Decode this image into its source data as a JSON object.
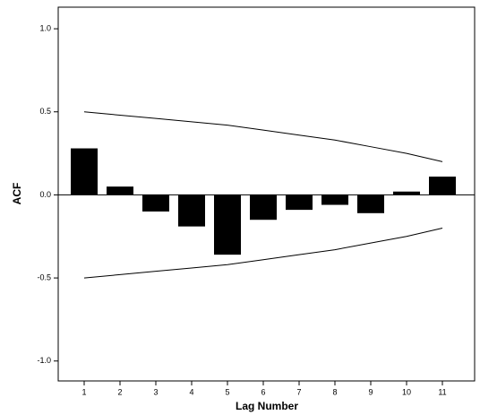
{
  "chart_data": {
    "type": "bar",
    "x_label": "Lag Number",
    "y_label": "ACF",
    "categories": [
      "1",
      "2",
      "3",
      "4",
      "5",
      "6",
      "7",
      "8",
      "9",
      "10",
      "11"
    ],
    "values": [
      0.28,
      0.05,
      -0.1,
      -0.19,
      -0.36,
      -0.15,
      -0.09,
      -0.06,
      -0.11,
      0.02,
      0.11
    ],
    "upper_limit": [
      0.5,
      0.48,
      0.46,
      0.44,
      0.42,
      0.39,
      0.36,
      0.33,
      0.29,
      0.25,
      0.2
    ],
    "lower_limit": [
      -0.5,
      -0.48,
      -0.46,
      -0.44,
      -0.42,
      -0.39,
      -0.36,
      -0.33,
      -0.29,
      -0.25,
      -0.2
    ],
    "color": "#000000",
    "ylim": [
      -1.12,
      1.13
    ],
    "yticks": [
      {
        "value": -1.0,
        "label": "-1.0"
      },
      {
        "value": -0.5,
        "label": "-0.5"
      },
      {
        "value": 0,
        "label": "0.0"
      },
      {
        "value": 0.5,
        "label": "0.5"
      },
      {
        "value": 1.0,
        "label": "1.0"
      }
    ]
  }
}
